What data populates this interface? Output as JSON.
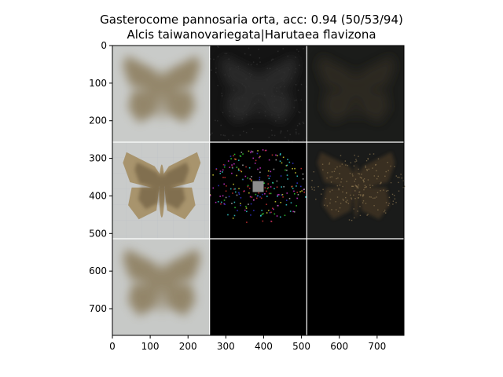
{
  "chart_data": {
    "type": "image-grid",
    "title_line1": "Gasterocome pannosaria orta, acc: 0.94 (50/53/94)",
    "title_line2": "Alcis taiwanovariegata|Harutaea flavizona",
    "x_ticks": [
      0,
      100,
      200,
      300,
      400,
      500,
      600,
      700
    ],
    "y_ticks": [
      0,
      100,
      200,
      300,
      400,
      500,
      600,
      700
    ],
    "x_range": [
      0,
      771
    ],
    "y_range": [
      0,
      771
    ],
    "grid": {
      "rows": 3,
      "cols": 3,
      "tile_size": 257
    },
    "tiles": [
      {
        "row": 0,
        "col": 0,
        "content": "blurred-moth-light",
        "bg": "#c9cbc9"
      },
      {
        "row": 0,
        "col": 1,
        "content": "dark-noise-moth",
        "bg": "#141414"
      },
      {
        "row": 0,
        "col": 2,
        "content": "dark-faint-moth",
        "bg": "#1b1c1a"
      },
      {
        "row": 1,
        "col": 0,
        "content": "moth-photo",
        "bg": "#c9cbca"
      },
      {
        "row": 1,
        "col": 1,
        "content": "sparse-colored-noise",
        "bg": "#000000"
      },
      {
        "row": 1,
        "col": 2,
        "content": "dark-speckled-moth",
        "bg": "#1a1b1a"
      },
      {
        "row": 2,
        "col": 0,
        "content": "blurred-moth-light",
        "bg": "#c7c9c7"
      },
      {
        "row": 2,
        "col": 1,
        "content": "empty-black",
        "bg": "#000000"
      },
      {
        "row": 2,
        "col": 2,
        "content": "empty-black",
        "bg": "#000000"
      }
    ],
    "colors": {
      "moth": "#8a7a5a",
      "moth_dark": "#5b4c33",
      "light_bg": "#c9cbc9"
    }
  }
}
